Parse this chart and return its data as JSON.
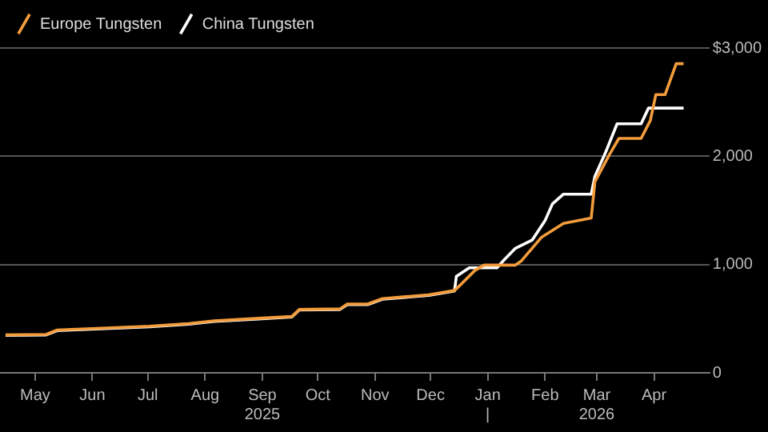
{
  "chart_data": {
    "type": "line",
    "legend": "top left",
    "grid": "y",
    "xlim": [
      "2025-04-12",
      "2026-05-01"
    ],
    "xticks": [
      {
        "value": "2025-05-01",
        "label": "May"
      },
      {
        "value": "2025-06-01",
        "label": "Jun"
      },
      {
        "value": "2025-07-01",
        "label": "Jul"
      },
      {
        "value": "2025-08-01",
        "label": "Aug"
      },
      {
        "value": "2025-09-01",
        "label": "Sep\n2025"
      },
      {
        "value": "2025-10-01",
        "label": "Oct"
      },
      {
        "value": "2025-11-01",
        "label": "Nov"
      },
      {
        "value": "2025-12-01",
        "label": "Dec"
      },
      {
        "value": "2026-01-01",
        "label": "Jan\n|"
      },
      {
        "value": "2026-02-01",
        "label": "Feb"
      },
      {
        "value": "2026-03-01",
        "label": "Mar\n2026"
      },
      {
        "value": "2026-04-01",
        "label": "Apr"
      }
    ],
    "ylim": [
      0,
      3000
    ],
    "yticks": [
      0,
      {
        "value": 1000,
        "label": "1,000"
      },
      {
        "value": 2000,
        "label": "2,000"
      },
      {
        "value": 3000,
        "label": "$3,000"
      }
    ],
    "series": [
      {
        "name": "Europe Tungsten",
        "color": "#f39c3c",
        "x": [
          "2025-04-15",
          "2025-05-07",
          "2025-05-13",
          "2025-07-02",
          "2025-07-23",
          "2025-08-06",
          "2025-09-01",
          "2025-09-17",
          "2025-09-21",
          "2025-10-13",
          "2025-10-17",
          "2025-10-28",
          "2025-11-05",
          "2025-11-30",
          "2025-12-14",
          "2025-12-18",
          "2025-12-25",
          "2025-12-30",
          "2026-01-16",
          "2026-01-19",
          "2026-01-30",
          "2026-02-11",
          "2026-02-26",
          "2026-02-28",
          "2026-03-08",
          "2026-03-13",
          "2026-03-25",
          "2026-03-30",
          "2026-04-02",
          "2026-04-07",
          "2026-04-13",
          "2026-04-17"
        ],
        "values": [
          350,
          355,
          395,
          430,
          455,
          480,
          505,
          520,
          585,
          590,
          635,
          635,
          685,
          720,
          760,
          825,
          945,
          995,
          995,
          1030,
          1250,
          1380,
          1430,
          1765,
          2020,
          2165,
          2165,
          2330,
          2570,
          2570,
          2855,
          2855
        ]
      },
      {
        "name": "China Tungsten",
        "color": "#ffffff",
        "x": [
          "2025-04-15",
          "2025-05-07",
          "2025-05-13",
          "2025-07-02",
          "2025-07-23",
          "2025-08-06",
          "2025-09-01",
          "2025-09-17",
          "2025-09-21",
          "2025-10-13",
          "2025-10-17",
          "2025-10-28",
          "2025-11-05",
          "2025-11-30",
          "2025-12-14",
          "2025-12-15",
          "2025-12-22",
          "2026-01-06",
          "2026-01-10",
          "2026-01-16",
          "2026-01-25",
          "2026-02-01",
          "2026-02-05",
          "2026-02-11",
          "2026-02-26",
          "2026-02-28",
          "2026-03-06",
          "2026-03-12",
          "2026-03-25",
          "2026-03-29",
          "2026-04-17"
        ],
        "values": [
          345,
          350,
          390,
          425,
          450,
          475,
          500,
          515,
          580,
          585,
          630,
          630,
          680,
          715,
          755,
          890,
          970,
          970,
          1045,
          1150,
          1225,
          1405,
          1560,
          1650,
          1650,
          1815,
          2045,
          2300,
          2300,
          2445,
          2445
        ]
      }
    ]
  }
}
